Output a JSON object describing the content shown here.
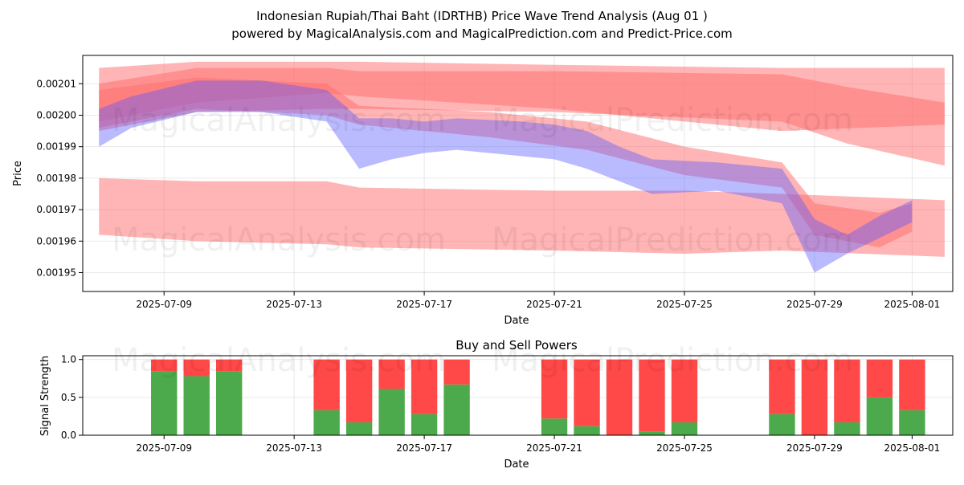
{
  "header": {
    "title_line1": "Indonesian Rupiah/Thai Baht (IDRTHB) Price Wave Trend Analysis (Aug 01 )",
    "title_line2": "powered by MagicalAnalysis.com and MagicalPrediction.com and Predict-Price.com"
  },
  "watermarks": {
    "left": "MagicalAnalysis.com",
    "right": "MagicalPrediction.com"
  },
  "colors": {
    "band_red": "#ff6b6b",
    "band_blue": "#5b5bff",
    "buy_green": "#4caa4c",
    "sell_red": "#ff4848"
  },
  "chart_data": [
    {
      "type": "area",
      "title": "",
      "xlabel": "Date",
      "ylabel": "Price",
      "xlim": [
        "2025-07-06 12:00",
        "2025-08-02 06:00"
      ],
      "ylim": [
        0.001944,
        0.002019
      ],
      "x_ticks": [
        "2025-07-09",
        "2025-07-13",
        "2025-07-17",
        "2025-07-21",
        "2025-07-25",
        "2025-07-29",
        "2025-08-01"
      ],
      "y_ticks": [
        "0.00195",
        "0.00196",
        "0.00197",
        "0.00198",
        "0.00199",
        "0.00200",
        "0.00201"
      ],
      "y_tick_values": [
        0.00195,
        0.00196,
        0.00197,
        0.00198,
        0.00199,
        0.002,
        0.00201
      ],
      "grid": true,
      "series": [
        {
          "color": "red",
          "x": [
            "2025-07-07",
            "2025-07-10",
            "2025-07-14",
            "2025-07-15",
            "2025-07-21",
            "2025-07-28",
            "2025-08-02"
          ],
          "upper": [
            0.002015,
            0.002017,
            0.002017,
            0.002017,
            0.002016,
            0.002015,
            0.002015
          ],
          "lower": [
            0.001998,
            0.002004,
            0.002007,
            0.002006,
            0.002002,
            0.001995,
            0.001997
          ]
        },
        {
          "color": "red",
          "x": [
            "2025-07-07",
            "2025-07-10",
            "2025-07-14",
            "2025-07-15",
            "2025-07-21",
            "2025-07-28",
            "2025-07-30",
            "2025-08-02"
          ],
          "upper": [
            0.00201,
            0.002015,
            0.002015,
            0.002014,
            0.002014,
            0.002013,
            0.002009,
            0.002004
          ],
          "lower": [
            0.001995,
            0.002001,
            0.002002,
            0.002002,
            0.002001,
            0.001998,
            0.001991,
            0.001984
          ]
        },
        {
          "color": "red",
          "x": [
            "2025-07-07",
            "2025-07-10",
            "2025-07-14",
            "2025-07-15",
            "2025-07-21",
            "2025-07-25",
            "2025-07-28",
            "2025-08-02"
          ],
          "upper": [
            0.00198,
            0.001979,
            0.001979,
            0.001977,
            0.001976,
            0.001976,
            0.001975,
            0.001973
          ],
          "lower": [
            0.001962,
            0.00196,
            0.001959,
            0.001958,
            0.001957,
            0.001956,
            0.001957,
            0.001955
          ]
        },
        {
          "color": "red",
          "x": [
            "2025-07-07",
            "2025-07-10",
            "2025-07-14",
            "2025-07-15",
            "2025-07-19",
            "2025-07-22",
            "2025-07-25",
            "2025-07-28",
            "2025-07-29",
            "2025-07-31",
            "2025-08-01"
          ],
          "upper": [
            0.002008,
            0.002012,
            0.00201,
            0.002003,
            0.002001,
            0.001998,
            0.00199,
            0.001985,
            0.001972,
            0.001969,
            0.001972
          ],
          "lower": [
            0.001996,
            0.002002,
            0.002,
            0.001997,
            0.001993,
            0.001989,
            0.001981,
            0.001977,
            0.001962,
            0.001958,
            0.001963
          ]
        },
        {
          "color": "blue",
          "x": [
            "2025-07-07",
            "2025-07-08",
            "2025-07-10",
            "2025-07-12",
            "2025-07-14",
            "2025-07-15",
            "2025-07-16",
            "2025-07-17",
            "2025-07-18",
            "2025-07-20",
            "2025-07-21",
            "2025-07-22",
            "2025-07-23",
            "2025-07-24",
            "2025-07-26",
            "2025-07-28",
            "2025-07-29",
            "2025-07-30",
            "2025-07-31",
            "2025-08-01"
          ],
          "upper": [
            0.002002,
            0.002006,
            0.002011,
            0.002011,
            0.002008,
            0.001999,
            0.001999,
            0.001998,
            0.001999,
            0.001998,
            0.001997,
            0.001995,
            0.00199,
            0.001986,
            0.001985,
            0.001983,
            0.001967,
            0.001962,
            0.001968,
            0.001973
          ],
          "lower": [
            0.00199,
            0.001996,
            0.002001,
            0.002001,
            0.001998,
            0.001983,
            0.001986,
            0.001988,
            0.001989,
            0.001987,
            0.001986,
            0.001983,
            0.001979,
            0.001975,
            0.001976,
            0.001972,
            0.00195,
            0.001956,
            0.001961,
            0.001966
          ]
        }
      ]
    },
    {
      "type": "bar",
      "title": "Buy and Sell Powers",
      "xlabel": "Date",
      "ylabel": "Signal Strength",
      "ylim": [
        0,
        1.05
      ],
      "x_ticks": [
        "2025-07-09",
        "2025-07-13",
        "2025-07-17",
        "2025-07-21",
        "2025-07-25",
        "2025-07-29",
        "2025-08-01"
      ],
      "y_ticks": [
        "0.0",
        "0.5",
        "1.0"
      ],
      "y_tick_values": [
        0,
        0.5,
        1.0
      ],
      "categories": [
        "2025-07-09",
        "2025-07-10",
        "2025-07-11",
        "2025-07-14",
        "2025-07-15",
        "2025-07-16",
        "2025-07-17",
        "2025-07-18",
        "2025-07-21",
        "2025-07-22",
        "2025-07-23",
        "2025-07-24",
        "2025-07-25",
        "2025-07-28",
        "2025-07-29",
        "2025-07-30",
        "2025-07-31",
        "2025-08-01"
      ],
      "series": [
        {
          "name": "",
          "values": [
            0.84,
            0.78,
            0.84,
            0.33,
            0.17,
            0.61,
            0.28,
            0.67,
            0.22,
            0.12,
            0.0,
            0.05,
            0.17,
            0.28,
            0.0,
            0.17,
            0.5,
            0.33
          ]
        }
      ]
    }
  ]
}
